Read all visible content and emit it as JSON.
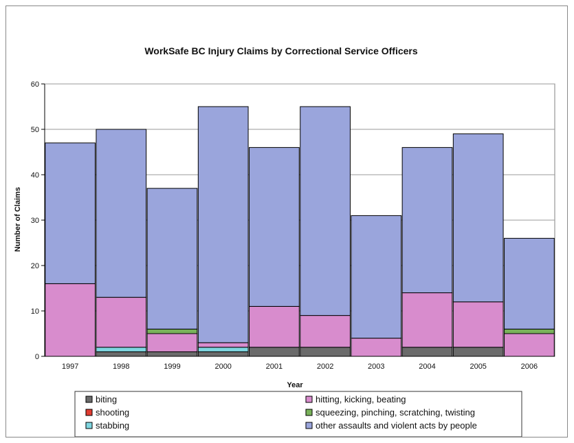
{
  "chart_data": {
    "type": "bar",
    "stacked": true,
    "title": "WorkSafe BC Injury Claims by Correctional Service Officers",
    "xlabel": "Year",
    "ylabel": "Number of Claims",
    "ylim": [
      0,
      60
    ],
    "yticks": [
      0,
      10,
      20,
      30,
      40,
      50,
      60
    ],
    "grid": true,
    "legend_position": "bottom",
    "categories": [
      "1997",
      "1998",
      "1999",
      "2000",
      "2001",
      "2002",
      "2003",
      "2004",
      "2005",
      "2006"
    ],
    "series": [
      {
        "name": "biting",
        "color": "#6b6b6b",
        "values": [
          0,
          1,
          1,
          1,
          2,
          2,
          0,
          2,
          2,
          0
        ]
      },
      {
        "name": "shooting",
        "color": "#e03c31",
        "values": [
          0,
          0,
          0,
          0,
          0,
          0,
          0,
          0,
          0,
          0
        ]
      },
      {
        "name": "stabbing",
        "color": "#7fd6e0",
        "values": [
          0,
          1,
          0,
          1,
          0,
          0,
          0,
          0,
          0,
          0
        ]
      },
      {
        "name": "hitting, kicking, beating",
        "color": "#d88ccd",
        "values": [
          16,
          11,
          4,
          1,
          9,
          7,
          4,
          12,
          10,
          5
        ]
      },
      {
        "name": "squeezing, pinching, scratching, twisting",
        "color": "#79b25a",
        "values": [
          0,
          0,
          1,
          0,
          0,
          0,
          0,
          0,
          0,
          1
        ]
      },
      {
        "name": "other assaults and violent acts by people",
        "color": "#9aa5dc",
        "values": [
          31,
          37,
          31,
          52,
          35,
          46,
          27,
          32,
          37,
          20
        ]
      }
    ],
    "legend_order": [
      "biting",
      "hitting, kicking, beating",
      "shooting",
      "squeezing, pinching, scratching, twisting",
      "stabbing",
      "other assaults and violent acts by people"
    ]
  }
}
